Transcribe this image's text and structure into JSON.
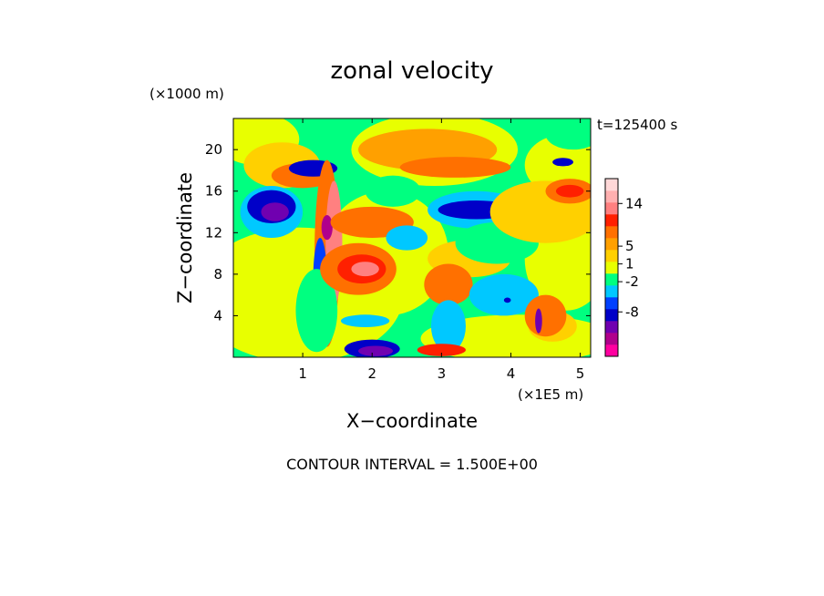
{
  "chart_data": {
    "type": "heatmap",
    "title": "zonal velocity",
    "xlabel": "X−coordinate",
    "ylabel": "Z−coordinate",
    "x_unit": "(×1E5 m)",
    "y_unit": "(×1000 m)",
    "time_label": "t=125400 s",
    "footer": "CONTOUR INTERVAL = 1.500E+00",
    "xlim": [
      0,
      5.15
    ],
    "ylim": [
      0,
      23
    ],
    "x_ticks": [
      "1",
      "2",
      "3",
      "4",
      "5"
    ],
    "y_ticks": [
      "4",
      "8",
      "12",
      "16",
      "20"
    ],
    "contour_interval": 1.5,
    "colorbar": {
      "colors": [
        "#ff00a0",
        "#b0008c",
        "#7000b0",
        "#0000c8",
        "#0040ff",
        "#00c8ff",
        "#00ff80",
        "#e8ff00",
        "#ffd000",
        "#ffa000",
        "#ff7000",
        "#ff2000",
        "#ff8080",
        "#ffb0b0",
        "#ffd8d8"
      ],
      "labels": [
        "-8",
        "-2",
        "1",
        "5",
        "14"
      ]
    },
    "blobs": [
      {
        "x": 0.7,
        "y": 18.5,
        "rx": 0.55,
        "ry": 2.2,
        "level": 8
      },
      {
        "x": 0.55,
        "y": 14.0,
        "rx": 0.45,
        "ry": 2.5,
        "level": 5
      },
      {
        "x": 0.55,
        "y": 14.5,
        "rx": 0.35,
        "ry": 1.6,
        "level": 3
      },
      {
        "x": 0.6,
        "y": 14.0,
        "rx": 0.2,
        "ry": 0.9,
        "level": 2
      },
      {
        "x": 1.0,
        "y": 17.5,
        "rx": 0.45,
        "ry": 1.2,
        "level": 10
      },
      {
        "x": 1.15,
        "y": 18.2,
        "rx": 0.35,
        "ry": 0.8,
        "level": 3
      },
      {
        "x": 1.35,
        "y": 10.0,
        "rx": 0.18,
        "ry": 9.0,
        "level": 10
      },
      {
        "x": 1.45,
        "y": 11.0,
        "rx": 0.12,
        "ry": 6.0,
        "level": 12
      },
      {
        "x": 1.25,
        "y": 7.5,
        "rx": 0.1,
        "ry": 4.0,
        "level": 4
      },
      {
        "x": 1.2,
        "y": 4.5,
        "rx": 0.3,
        "ry": 4.0,
        "level": 6
      },
      {
        "x": 1.35,
        "y": 12.5,
        "rx": 0.08,
        "ry": 1.2,
        "level": 1
      },
      {
        "x": 1.8,
        "y": 8.5,
        "rx": 0.55,
        "ry": 2.5,
        "level": 10
      },
      {
        "x": 1.85,
        "y": 8.5,
        "rx": 0.35,
        "ry": 1.4,
        "level": 11
      },
      {
        "x": 1.9,
        "y": 8.5,
        "rx": 0.2,
        "ry": 0.7,
        "level": 12
      },
      {
        "x": 2.0,
        "y": 13.0,
        "rx": 0.6,
        "ry": 1.5,
        "level": 10
      },
      {
        "x": 2.0,
        "y": 0.8,
        "rx": 0.4,
        "ry": 0.9,
        "level": 3
      },
      {
        "x": 2.05,
        "y": 0.6,
        "rx": 0.25,
        "ry": 0.5,
        "level": 2
      },
      {
        "x": 1.9,
        "y": 3.5,
        "rx": 0.35,
        "ry": 0.6,
        "level": 5
      },
      {
        "x": 2.3,
        "y": 16.0,
        "rx": 0.4,
        "ry": 1.5,
        "level": 6
      },
      {
        "x": 2.5,
        "y": 11.5,
        "rx": 0.3,
        "ry": 1.2,
        "level": 5
      },
      {
        "x": 2.8,
        "y": 20.0,
        "rx": 1.0,
        "ry": 2.0,
        "level": 9
      },
      {
        "x": 3.2,
        "y": 18.3,
        "rx": 0.8,
        "ry": 1.0,
        "level": 10
      },
      {
        "x": 3.1,
        "y": 7.0,
        "rx": 0.35,
        "ry": 2.0,
        "level": 10
      },
      {
        "x": 3.1,
        "y": 3.0,
        "rx": 0.25,
        "ry": 2.5,
        "level": 5
      },
      {
        "x": 3.0,
        "y": 0.7,
        "rx": 0.35,
        "ry": 0.6,
        "level": 11
      },
      {
        "x": 3.5,
        "y": 14.2,
        "rx": 0.7,
        "ry": 1.8,
        "level": 5
      },
      {
        "x": 3.5,
        "y": 14.2,
        "rx": 0.55,
        "ry": 0.9,
        "level": 3
      },
      {
        "x": 3.8,
        "y": 11.0,
        "rx": 0.6,
        "ry": 2.0,
        "level": 6
      },
      {
        "x": 3.9,
        "y": 6.0,
        "rx": 0.5,
        "ry": 2.0,
        "level": 5
      },
      {
        "x": 3.95,
        "y": 5.5,
        "rx": 0.05,
        "ry": 0.25,
        "level": 3
      },
      {
        "x": 4.5,
        "y": 14.0,
        "rx": 0.8,
        "ry": 3.0,
        "level": 8
      },
      {
        "x": 4.5,
        "y": 4.0,
        "rx": 0.3,
        "ry": 2.0,
        "level": 10
      },
      {
        "x": 4.4,
        "y": 3.5,
        "rx": 0.05,
        "ry": 1.2,
        "level": 2
      },
      {
        "x": 4.85,
        "y": 16.0,
        "rx": 0.35,
        "ry": 1.2,
        "level": 10
      },
      {
        "x": 4.85,
        "y": 16.0,
        "rx": 0.2,
        "ry": 0.6,
        "level": 11
      },
      {
        "x": 4.75,
        "y": 18.8,
        "rx": 0.15,
        "ry": 0.4,
        "level": 3
      },
      {
        "x": 4.9,
        "y": 21.5,
        "rx": 0.4,
        "ry": 1.5,
        "level": 6
      }
    ]
  }
}
